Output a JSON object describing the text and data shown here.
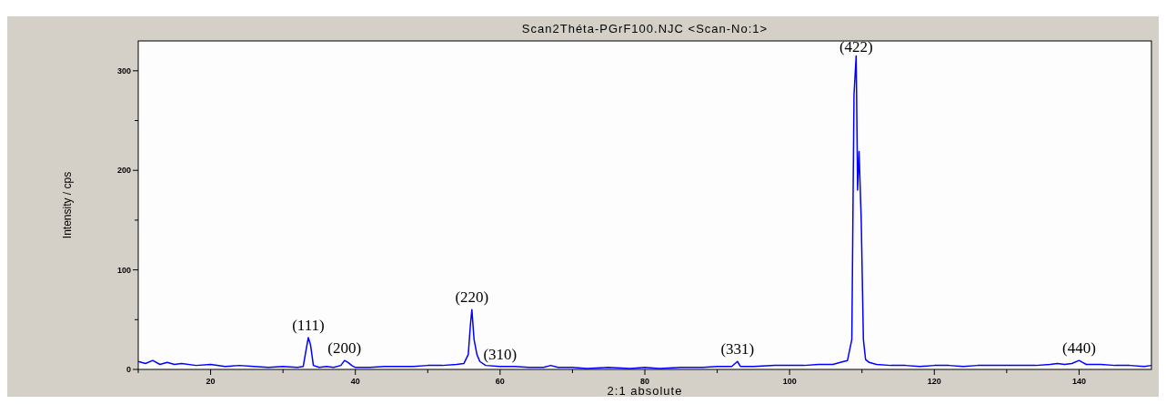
{
  "chart_data": {
    "type": "line",
    "title": "Scan2Théta-PGrF100.NJC <Scan-No:1>",
    "xlabel": "2:1 absolute",
    "ylabel": "Intensity / cps",
    "xlim": [
      10,
      150
    ],
    "ylim": [
      0,
      330
    ],
    "xticks": [
      {
        "value": 10,
        "label": null
      },
      20,
      {
        "value": 30,
        "label": null
      },
      40,
      {
        "value": 50,
        "label": null
      },
      60,
      {
        "value": 70,
        "label": null
      },
      80,
      {
        "value": 90,
        "label": null
      },
      100,
      {
        "value": 110,
        "label": null
      },
      120,
      {
        "value": 130,
        "label": null
      },
      140
    ],
    "yticks": [
      0,
      {
        "value": 50,
        "label": null
      },
      100,
      {
        "value": 150,
        "label": null
      },
      200,
      {
        "value": 250,
        "label": null
      },
      300
    ],
    "marker": "none",
    "line_style": "solid",
    "x": [
      10,
      11,
      12,
      13,
      14,
      15,
      16,
      18,
      20,
      22,
      24,
      26,
      28,
      30,
      32,
      32.8,
      33.2,
      33.5,
      33.8,
      34.2,
      35,
      36,
      37,
      38,
      38.5,
      39,
      39.5,
      40,
      42,
      44,
      46,
      48,
      50,
      52,
      54,
      55,
      55.6,
      55.9,
      56.1,
      56.4,
      56.8,
      57.2,
      58,
      60,
      62,
      64,
      66,
      67,
      68,
      70,
      72,
      75,
      78,
      80,
      82,
      85,
      88,
      90,
      92,
      92.8,
      93.2,
      95,
      98,
      100,
      102,
      104,
      106,
      107,
      108,
      108.6,
      108.9,
      109.2,
      109.4,
      109.6,
      109.9,
      110.2,
      110.5,
      111,
      112,
      114,
      116,
      118,
      120,
      122,
      124,
      126,
      128,
      130,
      132,
      134,
      136,
      137,
      138,
      139,
      140,
      140.5,
      141,
      143,
      145,
      147,
      149,
      150
    ],
    "series": [
      {
        "color": "#0000ff",
        "values": [
          8,
          6,
          9,
          5,
          7,
          5,
          6,
          4,
          5,
          3,
          4,
          3,
          2,
          3,
          2,
          3,
          20,
          32,
          25,
          4,
          2,
          3,
          2,
          4,
          9,
          7,
          4,
          2,
          2,
          3,
          3,
          3,
          4,
          4,
          5,
          6,
          15,
          45,
          60,
          30,
          15,
          8,
          4,
          3,
          3,
          2,
          2,
          4,
          2,
          2,
          1,
          2,
          1,
          2,
          1,
          2,
          2,
          3,
          3,
          8,
          3,
          3,
          4,
          4,
          4,
          5,
          5,
          7,
          9,
          30,
          276,
          315,
          180,
          219,
          150,
          30,
          10,
          7,
          5,
          4,
          4,
          3,
          4,
          4,
          3,
          4,
          4,
          4,
          4,
          4,
          5,
          6,
          5,
          6,
          9,
          7,
          5,
          5,
          4,
          4,
          3,
          4
        ]
      }
    ],
    "annotations": [
      {
        "text": "(111)",
        "x": 33.5,
        "y": 32
      },
      {
        "text": "(200)",
        "x": 38.5,
        "y": 9
      },
      {
        "text": "(220)",
        "x": 56.1,
        "y": 60
      },
      {
        "text": "(310)",
        "x": 60,
        "y": 3
      },
      {
        "text": "(331)",
        "x": 92.8,
        "y": 8
      },
      {
        "text": "(422)",
        "x": 109.2,
        "y": 315
      },
      {
        "text": "(440)",
        "x": 140,
        "y": 9
      }
    ]
  }
}
